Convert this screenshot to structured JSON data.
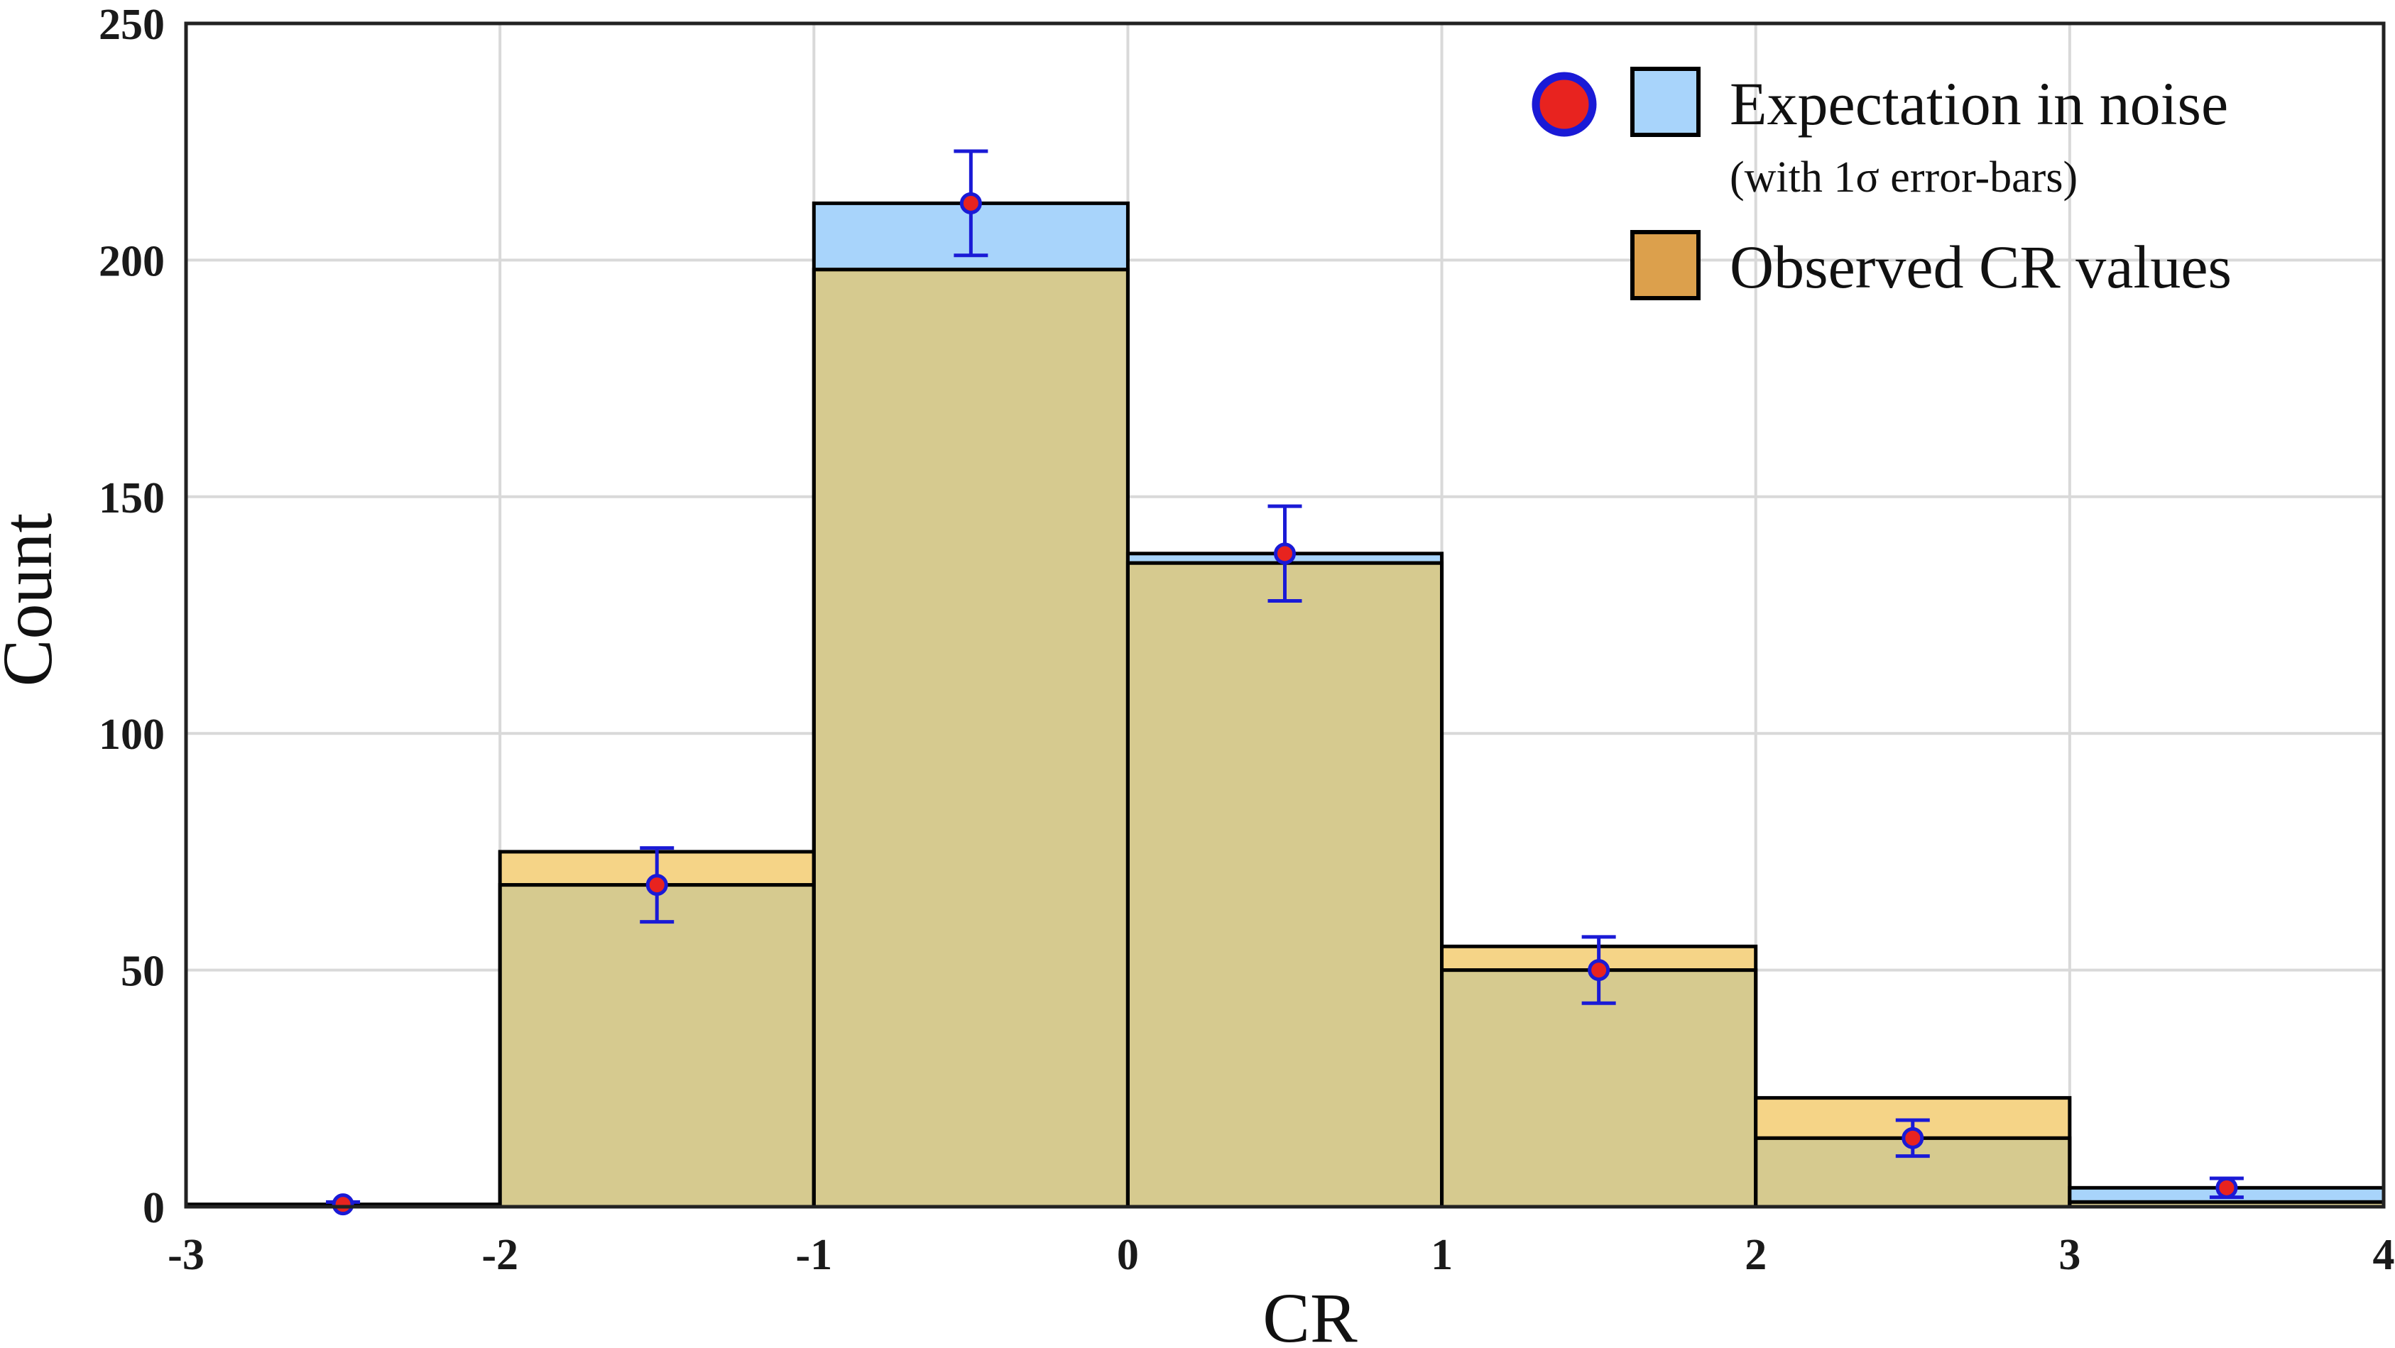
{
  "chart_data": {
    "type": "bar",
    "xlabel": "CR",
    "ylabel": "Count",
    "xlim": [
      -3,
      4
    ],
    "ylim": [
      0,
      250
    ],
    "xticks": [
      "-3",
      "-2",
      "-1",
      "0",
      "1",
      "2",
      "3",
      "4"
    ],
    "yticks": [
      "0",
      "50",
      "100",
      "150",
      "200",
      "250"
    ],
    "grid": true,
    "legend_position": "top-right",
    "bins": [
      {
        "left": -3,
        "right": -2,
        "center": -2.5
      },
      {
        "left": -2,
        "right": -1,
        "center": -1.5
      },
      {
        "left": -1,
        "right": 0,
        "center": -0.5
      },
      {
        "left": 0,
        "right": 1,
        "center": 0.5
      },
      {
        "left": 1,
        "right": 2,
        "center": 1.5
      },
      {
        "left": 2,
        "right": 3,
        "center": 2.5
      },
      {
        "left": 3,
        "right": 4,
        "center": 3.5
      }
    ],
    "series": [
      {
        "name": "Expectation in noise",
        "note": "(with 1σ error-bars)",
        "values": [
          0.5,
          68,
          212,
          138,
          50,
          14.5,
          4
        ],
        "error": [
          0.5,
          7.8,
          11,
          10,
          7,
          3.8,
          2
        ],
        "bar_color": "#a8d4fb",
        "marker_color": "#e8231f",
        "marker_edge": "#1a1ad6"
      },
      {
        "name": "Observed CR values",
        "values": [
          0,
          75,
          198,
          136,
          55,
          23,
          1
        ],
        "bar_color": "#f5d487",
        "legend_color": "#dca04c"
      }
    ],
    "overlap_color": "#d6ca8f"
  },
  "legend": {
    "expectation_label": "Expectation in noise",
    "expectation_sub": "(with 1σ error-bars)",
    "observed_label": "Observed CR values"
  }
}
